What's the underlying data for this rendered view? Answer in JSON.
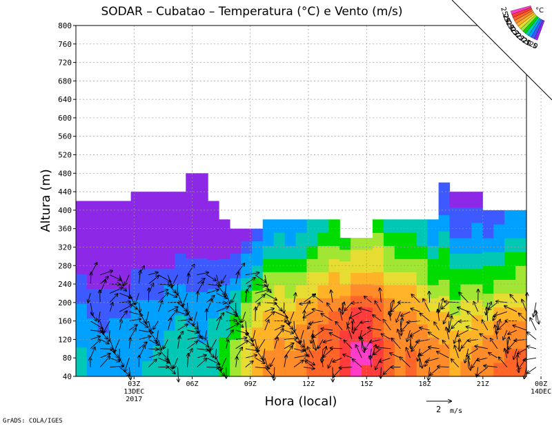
{
  "chart_data": {
    "type": "heatmap",
    "title": "SODAR – Cubatao – Temperatura (°C) e Vento (m/s)",
    "xlabel": "Hora (local)",
    "ylabel": "Altura (m)",
    "ylim": [
      40,
      800
    ],
    "yticks": [
      40,
      80,
      120,
      160,
      200,
      240,
      280,
      320,
      360,
      400,
      440,
      480,
      520,
      560,
      600,
      640,
      680,
      720,
      760,
      800
    ],
    "xlim": [
      0,
      23
    ],
    "xticks": [
      {
        "hour": 3,
        "label": "03Z",
        "sub": [
          "13DEC",
          "2017"
        ]
      },
      {
        "hour": 6,
        "label": "06Z",
        "sub": []
      },
      {
        "hour": 9,
        "label": "09Z",
        "sub": []
      },
      {
        "hour": 12,
        "label": "12Z",
        "sub": []
      },
      {
        "hour": 15,
        "label": "15Z",
        "sub": []
      },
      {
        "hour": 18,
        "label": "18Z",
        "sub": []
      },
      {
        "hour": 21,
        "label": "21Z",
        "sub": []
      },
      {
        "hour": 24,
        "label": "00Z",
        "sub": [
          "14DEC"
        ]
      }
    ],
    "grid": true,
    "colorbar": {
      "unit": "°C",
      "levels": [
        "25.5",
        "25",
        "24.5",
        "24",
        "23.5",
        "23",
        "22.5",
        "22",
        "21.5",
        "21",
        "20.5",
        "20"
      ],
      "colors": [
        "#ff3cc8",
        "#ff3c3c",
        "#ff6428",
        "#ff8c28",
        "#ffb428",
        "#e6dc32",
        "#a0e632",
        "#00dc00",
        "#00c8b4",
        "#00a0ff",
        "#3c5aff",
        "#8c28e6"
      ]
    },
    "wind_reference": {
      "value": "2",
      "unit": "m/s"
    },
    "top_heights": [
      420,
      420,
      420,
      420,
      420,
      440,
      440,
      440,
      440,
      440,
      480,
      480,
      420,
      380,
      360,
      360,
      360,
      380,
      380,
      380,
      380,
      380,
      380,
      380,
      340,
      340,
      340,
      380,
      380,
      380,
      380,
      380,
      380,
      460,
      440,
      440,
      440,
      400,
      400,
      400,
      400
    ],
    "temperature": [
      [
        21.6,
        21.4,
        21.2,
        21.2,
        21.3,
        21.4,
        21.5,
        21.6,
        21.8,
        21.9,
        21.7,
        21.6,
        21.9,
        22.3,
        22.8,
        23.4,
        23.8,
        24.0,
        24.1,
        24.0,
        24.3,
        24.5,
        24.7,
        24.8,
        25.1,
        25.6,
        25.4,
        25.0,
        24.6,
        24.4,
        24.5,
        24.4,
        24.3,
        24.1,
        23.9,
        24.0,
        24.2,
        24.4,
        24.5,
        24.5,
        24.6
      ],
      [
        21.5,
        21.3,
        21.2,
        21.2,
        21.3,
        21.3,
        21.4,
        21.5,
        21.7,
        21.8,
        21.6,
        21.5,
        21.8,
        22.2,
        22.7,
        23.3,
        23.8,
        24.0,
        24.1,
        24.0,
        24.2,
        24.5,
        24.6,
        24.8,
        25.0,
        25.6,
        25.5,
        25.0,
        24.6,
        24.4,
        24.5,
        24.4,
        24.2,
        24.0,
        23.8,
        23.9,
        24.1,
        24.3,
        24.4,
        24.5,
        24.5
      ],
      [
        21.4,
        21.2,
        21.1,
        21.1,
        21.2,
        21.2,
        21.3,
        21.4,
        21.6,
        21.7,
        21.5,
        21.4,
        21.7,
        22.1,
        22.6,
        23.2,
        23.7,
        23.9,
        24.0,
        23.9,
        24.1,
        24.4,
        24.6,
        24.8,
        25.0,
        25.5,
        25.5,
        25.0,
        24.5,
        24.3,
        24.4,
        24.3,
        24.1,
        23.8,
        23.6,
        23.7,
        23.9,
        24.1,
        24.3,
        24.4,
        24.4
      ],
      [
        21.2,
        21.0,
        20.9,
        21.0,
        21.1,
        21.1,
        21.2,
        21.3,
        21.4,
        21.5,
        21.3,
        21.2,
        21.5,
        21.9,
        22.4,
        23.0,
        23.5,
        23.8,
        23.9,
        23.8,
        24.0,
        24.3,
        24.5,
        24.7,
        25.0,
        25.4,
        25.4,
        24.9,
        24.4,
        24.2,
        24.3,
        24.1,
        23.9,
        23.6,
        23.3,
        23.4,
        23.6,
        23.8,
        24.0,
        24.1,
        24.2
      ],
      [
        21.0,
        20.8,
        20.7,
        20.8,
        20.9,
        21.0,
        21.0,
        21.1,
        21.2,
        21.3,
        21.1,
        21.0,
        21.3,
        21.7,
        22.2,
        22.8,
        23.3,
        23.6,
        23.7,
        23.6,
        23.8,
        24.1,
        24.3,
        24.5,
        24.8,
        25.2,
        25.2,
        24.7,
        24.2,
        24.0,
        24.1,
        23.9,
        23.6,
        23.2,
        22.9,
        23.0,
        23.2,
        23.4,
        23.6,
        23.7,
        23.8
      ],
      [
        20.8,
        20.6,
        20.5,
        20.6,
        20.7,
        20.8,
        20.8,
        20.9,
        21.0,
        21.1,
        20.9,
        20.8,
        21.1,
        21.4,
        21.9,
        22.5,
        23.0,
        23.3,
        23.4,
        23.3,
        23.5,
        23.8,
        24.1,
        24.3,
        24.6,
        25.0,
        25.0,
        24.5,
        24.0,
        23.8,
        23.8,
        23.6,
        23.2,
        22.8,
        22.4,
        22.5,
        22.7,
        22.9,
        23.1,
        23.2,
        23.3
      ],
      [
        20.5,
        20.3,
        20.2,
        20.3,
        20.4,
        20.5,
        20.5,
        20.6,
        20.7,
        20.8,
        20.6,
        20.5,
        20.8,
        21.1,
        21.5,
        22.1,
        22.6,
        22.9,
        23.0,
        22.9,
        23.1,
        23.4,
        23.7,
        23.9,
        24.2,
        24.6,
        24.6,
        24.2,
        23.7,
        23.5,
        23.5,
        23.3,
        22.8,
        22.4,
        22.0,
        22.0,
        22.2,
        22.4,
        22.6,
        22.8,
        22.9
      ],
      [
        20.2,
        20.0,
        19.9,
        20.0,
        20.1,
        20.2,
        20.2,
        20.3,
        20.4,
        20.5,
        20.3,
        20.2,
        20.5,
        20.8,
        21.2,
        21.7,
        22.2,
        22.5,
        22.6,
        22.5,
        22.7,
        23.0,
        23.3,
        23.5,
        23.8,
        24.2,
        24.2,
        23.8,
        23.3,
        23.1,
        23.1,
        22.9,
        22.4,
        22.0,
        21.6,
        21.6,
        21.8,
        22.0,
        22.2,
        22.4,
        22.5
      ],
      [
        19.9,
        19.7,
        19.6,
        19.7,
        19.8,
        19.9,
        19.9,
        20.0,
        20.1,
        20.2,
        20.0,
        19.9,
        20.2,
        20.5,
        20.9,
        21.3,
        21.8,
        22.1,
        22.2,
        22.1,
        22.3,
        22.6,
        22.9,
        23.1,
        23.4,
        23.8,
        23.8,
        23.4,
        22.9,
        22.7,
        22.7,
        22.5,
        22.0,
        21.6,
        21.2,
        21.2,
        21.4,
        21.6,
        21.8,
        22.0,
        22.1
      ],
      [
        19.6,
        19.4,
        19.3,
        19.4,
        19.5,
        19.6,
        19.6,
        19.7,
        19.8,
        19.9,
        19.7,
        19.6,
        19.9,
        20.2,
        20.6,
        21.0,
        21.4,
        21.7,
        21.8,
        21.7,
        21.9,
        22.2,
        22.5,
        22.7,
        23.0,
        23.4,
        23.4,
        23.0,
        22.5,
        22.3,
        22.3,
        22.1,
        21.6,
        21.2,
        20.8,
        20.8,
        21.0,
        21.2,
        21.4,
        21.6,
        21.7
      ],
      [
        19.3,
        19.1,
        19.0,
        19.1,
        19.2,
        19.3,
        19.3,
        19.4,
        19.5,
        19.6,
        19.4,
        19.3,
        19.6,
        19.9,
        20.3,
        20.7,
        21.1,
        21.4,
        21.5,
        21.4,
        21.6,
        21.9,
        22.2,
        22.4,
        22.7,
        23.1,
        23.1,
        22.7,
        22.2,
        22.0,
        22.0,
        21.8,
        21.3,
        20.9,
        20.5,
        20.5,
        20.7,
        20.9,
        21.1,
        21.3,
        21.4
      ],
      [
        19.0,
        18.8,
        18.7,
        18.8,
        18.9,
        19.0,
        19.0,
        19.1,
        19.2,
        19.3,
        19.1,
        19.0,
        19.3,
        19.6,
        20.0,
        20.4,
        20.8,
        21.1,
        21.2,
        21.1,
        21.3,
        21.6,
        21.9,
        22.1,
        22.4,
        22.8,
        22.8,
        22.4,
        21.9,
        21.7,
        21.7,
        21.5,
        21.0,
        20.6,
        20.2,
        20.2,
        20.4,
        20.6,
        20.8,
        21.0,
        21.1
      ]
    ],
    "wind_heights": [
      60,
      80,
      100,
      120,
      140,
      160,
      180,
      200,
      220,
      240,
      260
    ],
    "wind_hours": [
      0.5,
      1.0,
      1.5,
      2.0,
      2.5,
      3.0,
      3.5,
      4.0,
      4.5,
      5.0,
      5.5,
      6.0,
      6.5,
      7.0,
      7.5,
      8.0,
      8.5,
      9.0,
      9.5,
      10.0,
      10.5,
      11.0,
      11.5,
      12.0,
      12.5,
      13.0,
      13.5,
      14.0,
      14.5,
      15.0,
      15.5,
      16.0,
      16.5,
      17.0,
      17.5,
      18.0,
      18.5,
      19.0,
      19.5,
      20.0,
      20.5,
      21.0,
      21.5,
      22.0,
      22.5,
      23.0,
      23.5
    ],
    "wind_note": "arrows drawn as direction/speed samples at listed hours and heights"
  }
}
